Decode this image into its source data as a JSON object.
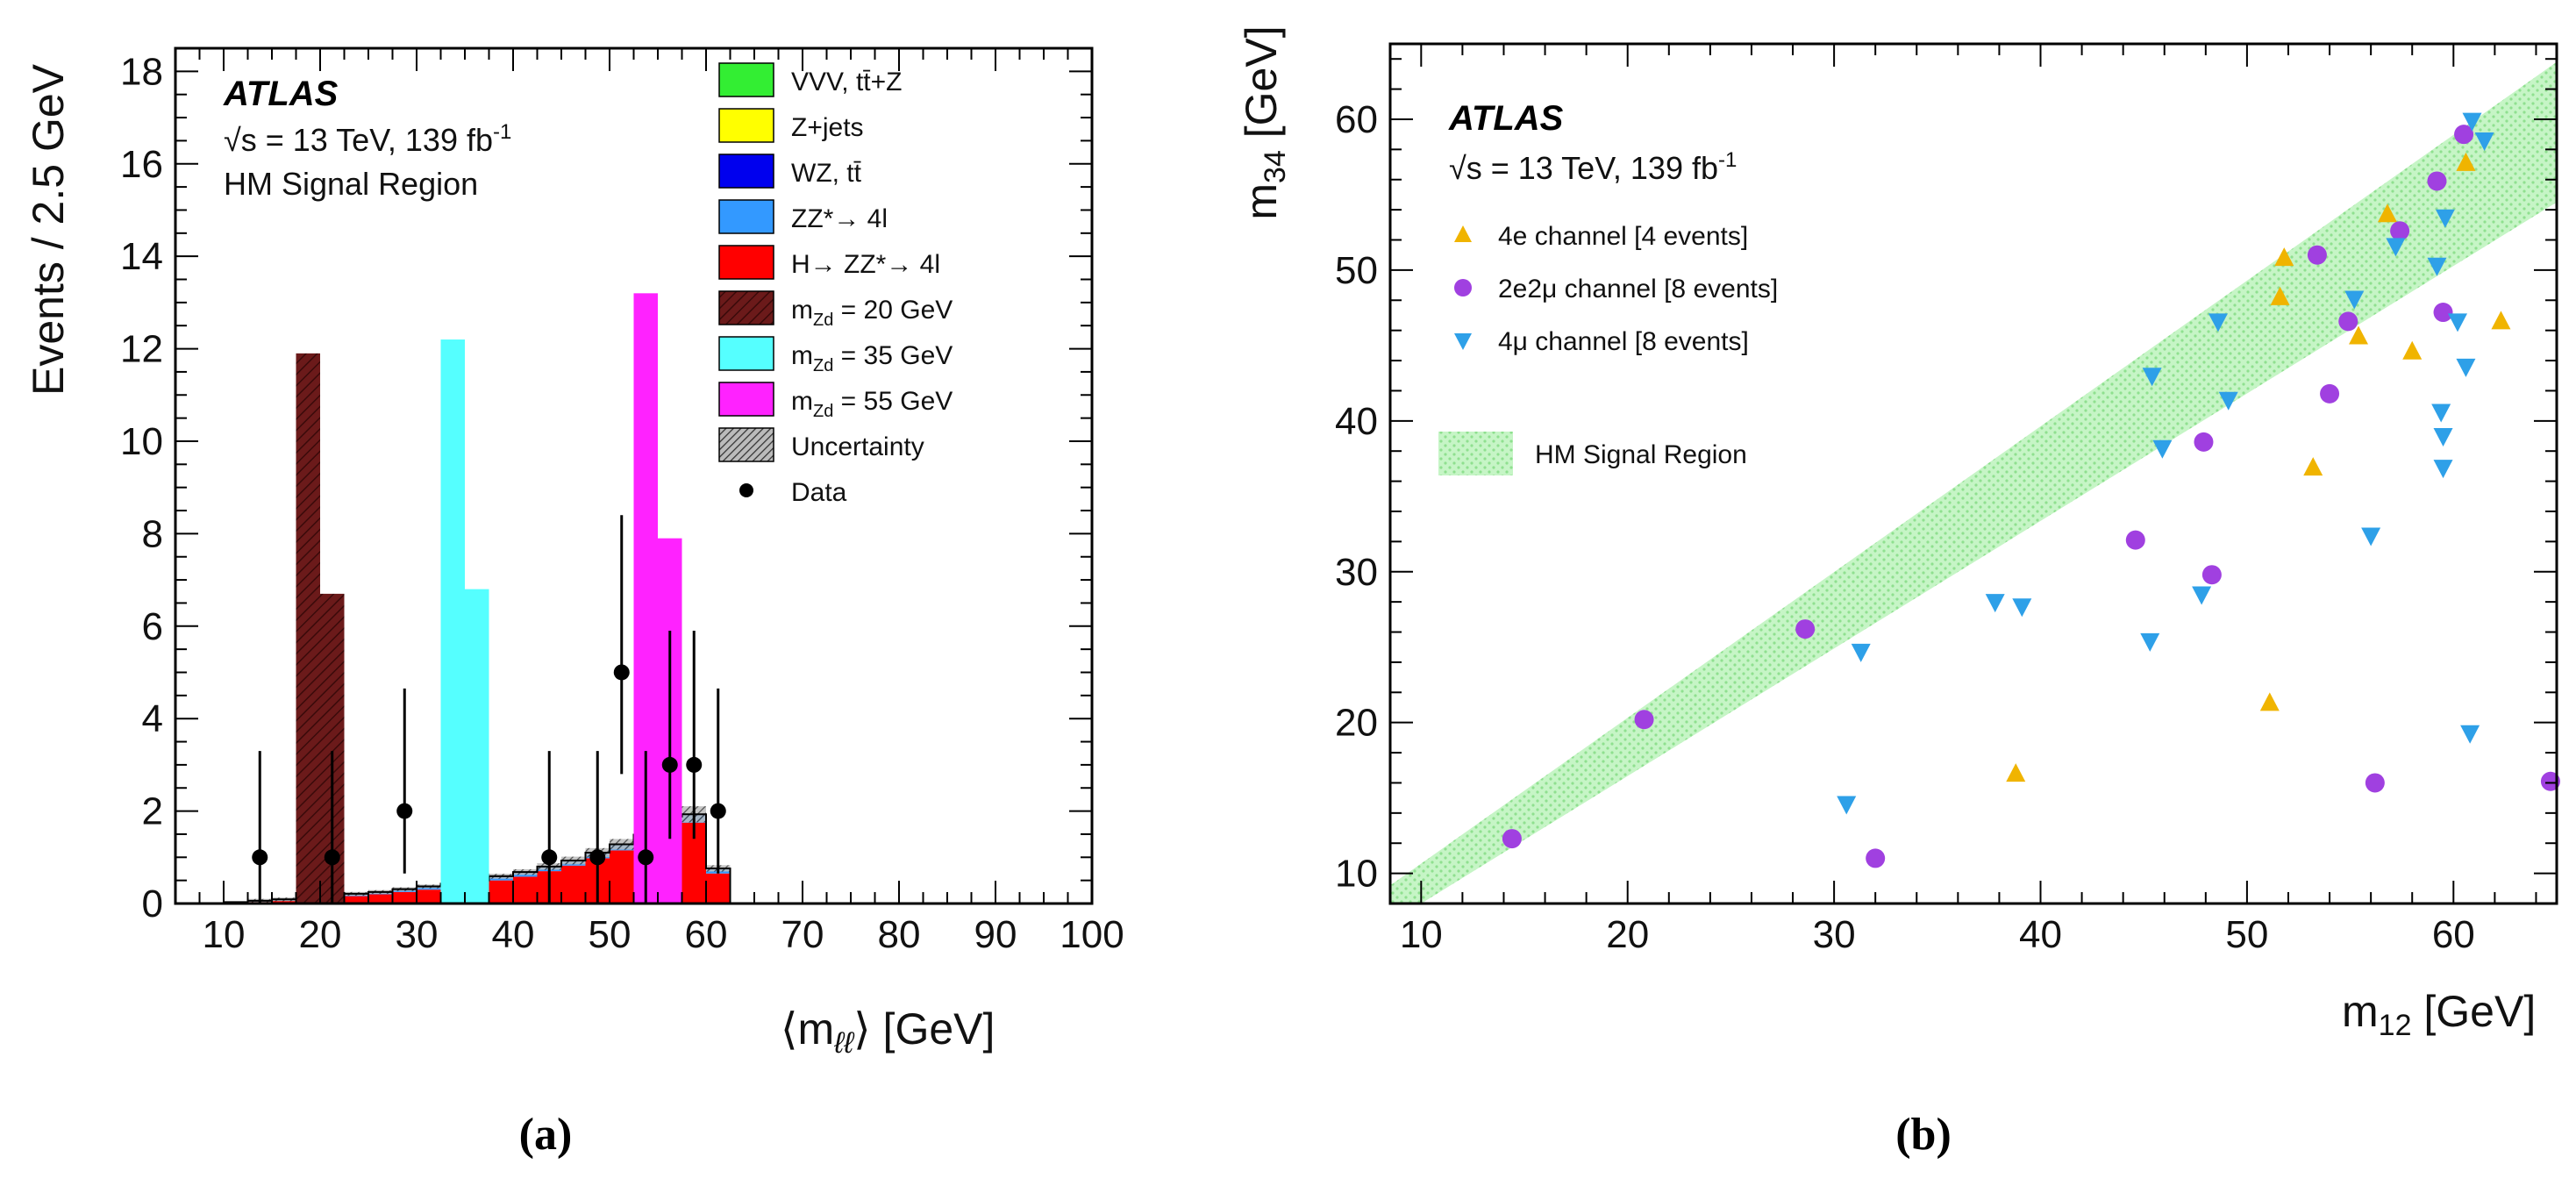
{
  "chart_data": [
    {
      "panel": "(a)",
      "type": "bar",
      "ylabel": "Events / 2.5 GeV",
      "xlabel": "⟨m",
      "xlabel_sub": "ℓℓ",
      "xlabel_unit": "⟩ [GeV]",
      "xlim": [
        5,
        100
      ],
      "ylim": [
        0,
        18.5
      ],
      "xticks": [
        10,
        20,
        30,
        40,
        50,
        60,
        70,
        80,
        90,
        100
      ],
      "yticks": [
        0,
        2,
        4,
        6,
        8,
        10,
        12,
        14,
        16,
        18
      ],
      "atlas": "ATLAS",
      "info_lines": [
        "√s = 13 TeV, 139 fb",
        "HM Signal Region"
      ],
      "info_sup": "-1",
      "legend": [
        {
          "label": "VVV, tt̄+Z",
          "color": "#33ee33",
          "kind": "box"
        },
        {
          "label": "Z+jets",
          "color": "#ffff00",
          "kind": "box"
        },
        {
          "label": "WZ, tt̄",
          "color": "#0000ee",
          "kind": "box"
        },
        {
          "label": "ZZ*→ 4l",
          "color": "#3399ff",
          "kind": "box"
        },
        {
          "label": "H→ ZZ*→ 4l",
          "color": "#ff0000",
          "kind": "box"
        },
        {
          "label": "m",
          "sub": "Zd",
          "tail": " = 20 GeV",
          "color": "#6b1a1a",
          "kind": "hatch"
        },
        {
          "label": "m",
          "sub": "Zd",
          "tail": " = 35 GeV",
          "color": "#55ffff",
          "kind": "box"
        },
        {
          "label": "m",
          "sub": "Zd",
          "tail": " = 55 GeV",
          "color": "#ff22ff",
          "kind": "box"
        },
        {
          "label": "Uncertainty",
          "color": "#555555",
          "kind": "unc"
        },
        {
          "label": "Data",
          "color": "#000000",
          "kind": "dot"
        }
      ],
      "bin_edges": [
        10,
        12.5,
        15,
        17.5,
        20,
        22.5,
        25,
        27.5,
        30,
        32.5,
        35,
        37.5,
        40,
        42.5,
        45,
        47.5,
        50,
        52.5,
        55,
        57.5,
        60,
        62.5
      ],
      "series": [
        {
          "name": "H→ ZZ*→ 4l",
          "color": "#ff0000",
          "values": [
            0.02,
            0.04,
            0.06,
            0.09,
            0.12,
            0.16,
            0.2,
            0.25,
            0.3,
            0.36,
            0.42,
            0.5,
            0.58,
            0.7,
            0.82,
            0.98,
            1.15,
            1.35,
            1.7,
            1.75,
            0.65
          ]
        },
        {
          "name": "ZZ*→ 4l",
          "color": "#3399ff",
          "values": [
            0.01,
            0.02,
            0.03,
            0.03,
            0.04,
            0.05,
            0.05,
            0.06,
            0.07,
            0.07,
            0.08,
            0.09,
            0.1,
            0.1,
            0.11,
            0.12,
            0.13,
            0.14,
            0.16,
            0.16,
            0.1
          ]
        },
        {
          "name": "WZ, tt̄",
          "color": "#0000ee",
          "values": [
            0,
            0,
            0,
            0,
            0,
            0,
            0,
            0,
            0,
            0,
            0,
            0,
            0,
            0,
            0,
            0,
            0,
            0,
            0.02,
            0.02,
            0.01
          ]
        },
        {
          "name": "Z+jets",
          "color": "#ffff00",
          "values": [
            0,
            0,
            0,
            0,
            0,
            0,
            0,
            0,
            0,
            0,
            0,
            0,
            0,
            0,
            0,
            0,
            0,
            0,
            0,
            0,
            0
          ]
        },
        {
          "name": "VVV, tt̄+Z",
          "color": "#33ee33",
          "values": [
            0,
            0,
            0,
            0,
            0,
            0,
            0,
            0,
            0,
            0,
            0,
            0,
            0,
            0,
            0,
            0,
            0,
            0,
            0,
            0,
            0
          ]
        }
      ],
      "signals": [
        {
          "name": "m Zd = 20 GeV",
          "color": "#6b1a1a",
          "pattern": "hatch",
          "bins": [
            {
              "x0": 17.5,
              "x1": 20,
              "y": 11.9
            },
            {
              "x0": 20,
              "x1": 22.5,
              "y": 6.7
            }
          ]
        },
        {
          "name": "m Zd = 35 GeV",
          "color": "#55ffff",
          "pattern": "solid",
          "bins": [
            {
              "x0": 32.5,
              "x1": 35,
              "y": 12.2
            },
            {
              "x0": 35,
              "x1": 37.5,
              "y": 6.8
            }
          ]
        },
        {
          "name": "m Zd = 55 GeV",
          "color": "#ff22ff",
          "pattern": "solid",
          "bins": [
            {
              "x0": 52.5,
              "x1": 55,
              "y": 13.2
            },
            {
              "x0": 55,
              "x1": 57.5,
              "y": 7.9
            }
          ]
        }
      ],
      "data_points": [
        {
          "x": 13.75,
          "y": 1,
          "lo": 0,
          "hi": 3.3
        },
        {
          "x": 21.25,
          "y": 1,
          "lo": 0,
          "hi": 3.3
        },
        {
          "x": 28.75,
          "y": 2,
          "lo": 0.65,
          "hi": 4.65
        },
        {
          "x": 43.75,
          "y": 1,
          "lo": 0,
          "hi": 3.3
        },
        {
          "x": 48.75,
          "y": 1,
          "lo": 0,
          "hi": 3.3
        },
        {
          "x": 51.25,
          "y": 5,
          "lo": 2.8,
          "hi": 8.4
        },
        {
          "x": 53.75,
          "y": 1,
          "lo": 0,
          "hi": 3.3
        },
        {
          "x": 56.25,
          "y": 3,
          "lo": 1.4,
          "hi": 5.9
        },
        {
          "x": 58.75,
          "y": 3,
          "lo": 1.4,
          "hi": 5.9
        },
        {
          "x": 61.25,
          "y": 2,
          "lo": 0.65,
          "hi": 4.65
        }
      ]
    },
    {
      "panel": "(b)",
      "type": "scatter",
      "xlabel": "m",
      "xlabel_sub": "12",
      "xlabel_unit": " [GeV]",
      "ylabel": "m",
      "ylabel_sub": "34",
      "ylabel_unit": " [GeV]",
      "xlim": [
        8.5,
        65
      ],
      "ylim": [
        8,
        65
      ],
      "xticks": [
        10,
        20,
        30,
        40,
        50,
        60
      ],
      "yticks": [
        10,
        20,
        30,
        40,
        50,
        60
      ],
      "atlas": "ATLAS",
      "info_line": "√s = 13 TeV, 139 fb",
      "info_sup": "-1",
      "band": {
        "label": "HM Signal Region",
        "color": "#b6f0b6",
        "upper": [
          [
            8.5,
            9.2
          ],
          [
            65,
            63.8
          ]
        ],
        "lower": [
          [
            10,
            8
          ],
          [
            65,
            54.5
          ]
        ]
      },
      "series": [
        {
          "name": "4e channel [4 events]",
          "marker": "triangle-up",
          "color": "#f0b400",
          "points": [
            [
              38.8,
              16.6
            ],
            [
              51.1,
              21.3
            ],
            [
              53.2,
              36.9
            ],
            [
              55.4,
              45.6
            ],
            [
              58.0,
              44.6
            ],
            [
              62.3,
              46.6
            ],
            [
              51.6,
              48.2
            ],
            [
              51.8,
              50.8
            ],
            [
              56.8,
              53.7
            ],
            [
              60.6,
              57.1
            ]
          ]
        },
        {
          "name": "2e2μ channel [8 events]",
          "marker": "circle",
          "color": "#a040e0",
          "points": [
            [
              14.4,
              12.3
            ],
            [
              20.8,
              20.2
            ],
            [
              28.6,
              26.2
            ],
            [
              32.0,
              11.0
            ],
            [
              44.6,
              32.1
            ],
            [
              47.9,
              38.6
            ],
            [
              48.3,
              29.8
            ],
            [
              53.4,
              51.0
            ],
            [
              54.0,
              41.8
            ],
            [
              54.9,
              46.6
            ],
            [
              56.2,
              16.0
            ],
            [
              57.4,
              52.6
            ],
            [
              59.2,
              55.9
            ],
            [
              59.5,
              47.2
            ],
            [
              60.5,
              59.0
            ],
            [
              64.7,
              16.1
            ]
          ]
        },
        {
          "name": "4μ channel [8 events]",
          "marker": "triangle-down",
          "color": "#2ea0e8",
          "points": [
            [
              30.6,
              14.6
            ],
            [
              31.3,
              24.7
            ],
            [
              37.8,
              28.0
            ],
            [
              39.1,
              27.7
            ],
            [
              45.3,
              25.4
            ],
            [
              45.4,
              43.0
            ],
            [
              45.9,
              38.2
            ],
            [
              47.8,
              28.5
            ],
            [
              48.6,
              46.6
            ],
            [
              49.1,
              41.4
            ],
            [
              55.2,
              48.1
            ],
            [
              56.0,
              32.4
            ],
            [
              57.2,
              51.6
            ],
            [
              59.2,
              50.3
            ],
            [
              59.4,
              40.6
            ],
            [
              59.5,
              39.0
            ],
            [
              59.5,
              36.9
            ],
            [
              59.6,
              53.5
            ],
            [
              60.2,
              46.6
            ],
            [
              60.6,
              43.6
            ],
            [
              60.8,
              19.3
            ],
            [
              60.9,
              59.9
            ],
            [
              61.5,
              58.6
            ]
          ]
        }
      ]
    }
  ],
  "captions": [
    "(a)",
    "(b)"
  ]
}
